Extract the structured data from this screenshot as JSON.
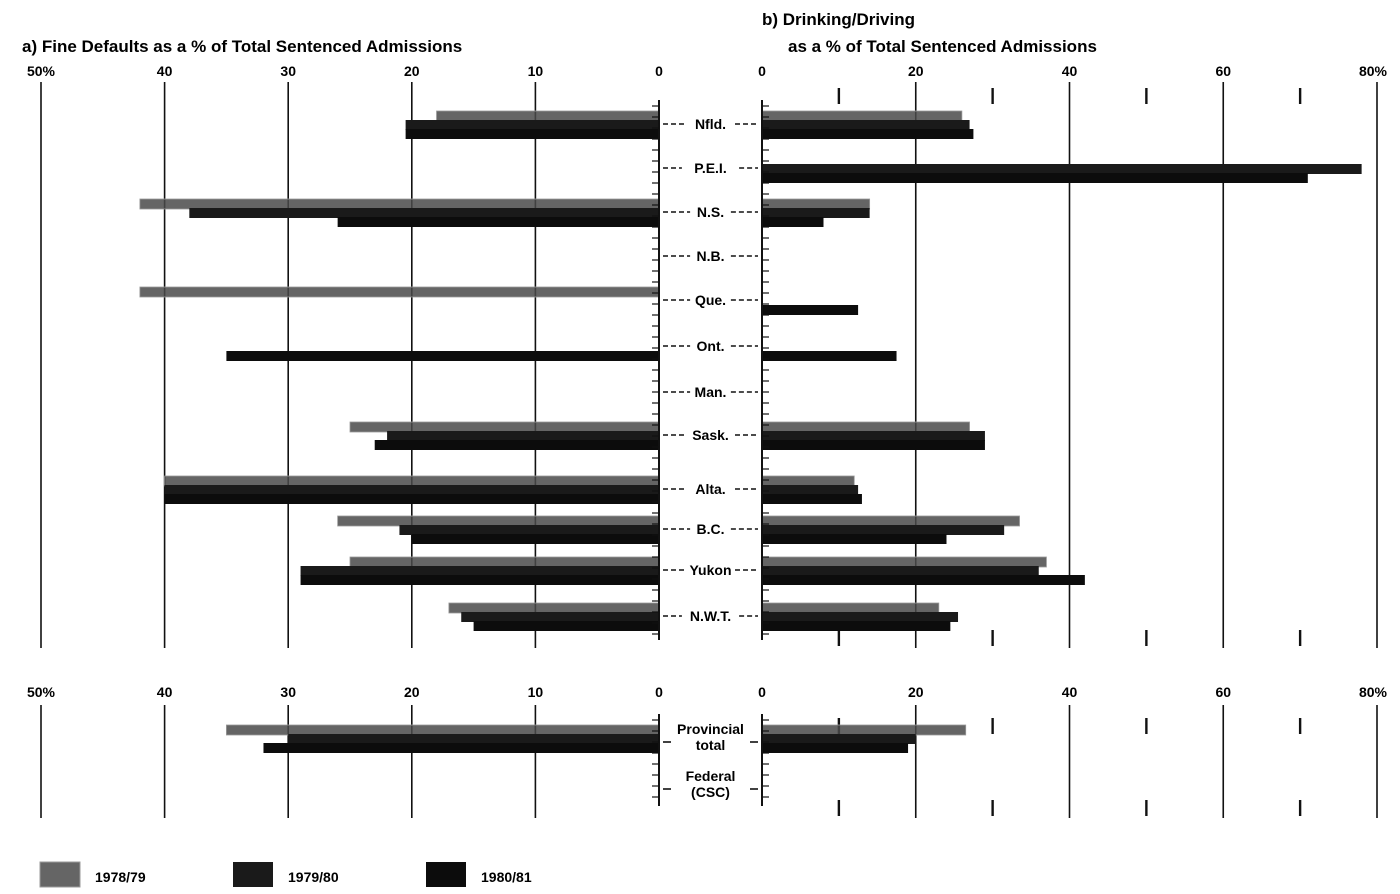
{
  "colors": {
    "1978/79": "#4a4a4a",
    "1979/80": "#1a1a1a",
    "1980/81": "#0c0c0c"
  },
  "legend": {
    "placement": "bottom-left",
    "items": [
      "1978/79",
      "1979/80",
      "1980/81"
    ]
  },
  "chart_data": [
    {
      "type": "bar",
      "panel": "a",
      "title": "a) Fine Defaults as a % of Total Sentenced Admissions",
      "orientation": "horizontal-reversed",
      "xlim": [
        0,
        50
      ],
      "xticks": [
        "0",
        "10",
        "20",
        "30",
        "40",
        "50%"
      ],
      "categories": [
        "Nfld.",
        "P.E.I.",
        "N.S.",
        "N.B.",
        "Que.",
        "Ont.",
        "Man.",
        "Sask.",
        "Alta.",
        "B.C.",
        "Yukon",
        "N.W.T."
      ],
      "series": [
        {
          "name": "1978/79",
          "values": [
            18,
            null,
            42,
            null,
            42,
            null,
            null,
            25,
            40,
            26,
            25,
            17
          ]
        },
        {
          "name": "1979/80",
          "values": [
            20.5,
            null,
            38,
            null,
            null,
            null,
            null,
            22,
            40,
            21,
            29,
            16
          ]
        },
        {
          "name": "1980/81",
          "values": [
            20.5,
            null,
            26,
            null,
            null,
            35,
            null,
            23,
            40,
            20,
            29,
            15
          ]
        }
      ],
      "totals": {
        "categories": [
          "Provincial total",
          "Federal (CSC)"
        ],
        "series": [
          {
            "name": "1978/79",
            "values": [
              35,
              null
            ]
          },
          {
            "name": "1979/80",
            "values": [
              30,
              null
            ]
          },
          {
            "name": "1980/81",
            "values": [
              32,
              null
            ]
          }
        ]
      }
    },
    {
      "type": "bar",
      "panel": "b",
      "title": "b) Drinking/Driving as a % of Total Sentenced Admissions",
      "orientation": "horizontal",
      "xlim": [
        0,
        80
      ],
      "xticks": [
        "0",
        "20",
        "40",
        "60",
        "80%"
      ],
      "categories": [
        "Nfld.",
        "P.E.I.",
        "N.S.",
        "N.B.",
        "Que.",
        "Ont.",
        "Man.",
        "Sask.",
        "Alta.",
        "B.C.",
        "Yukon",
        "N.W.T."
      ],
      "series": [
        {
          "name": "1978/79",
          "values": [
            26,
            null,
            14,
            null,
            null,
            null,
            null,
            27,
            12,
            33.5,
            37,
            23
          ]
        },
        {
          "name": "1979/80",
          "values": [
            27,
            78,
            14,
            null,
            null,
            null,
            null,
            29,
            12.5,
            31.5,
            36,
            25.5
          ]
        },
        {
          "name": "1980/81",
          "values": [
            27.5,
            71,
            8,
            null,
            12.5,
            17.5,
            null,
            29,
            13,
            24,
            42,
            24.5
          ]
        }
      ],
      "totals": {
        "categories": [
          "Provincial total",
          "Federal (CSC)"
        ],
        "series": [
          {
            "name": "1978/79",
            "values": [
              26.5,
              null
            ]
          },
          {
            "name": "1979/80",
            "values": [
              20,
              null
            ]
          },
          {
            "name": "1980/81",
            "values": [
              19,
              null
            ]
          }
        ]
      }
    }
  ]
}
